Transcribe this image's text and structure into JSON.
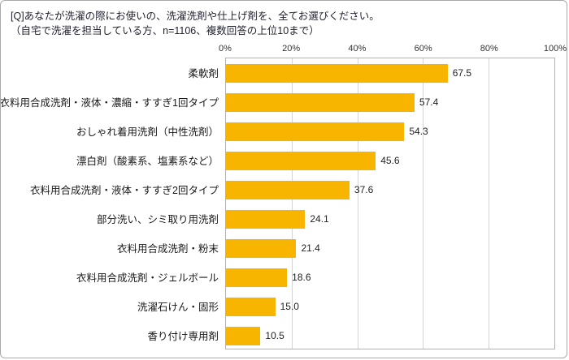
{
  "title": {
    "line1": "[Q]あなたが洗濯の際にお使いの、洗濯洗剤や仕上げ剤を、全てお選びください。",
    "line2": "（自宅で洗濯を担当している方、n=1106、複数回答の上位10まで）"
  },
  "chart_data": {
    "type": "bar",
    "orientation": "horizontal",
    "title": "[Q]あなたが洗濯の際にお使いの、洗濯洗剤や仕上げ剤を、全てお選びください。（自宅で洗濯を担当している方、n=1106、複数回答の上位10まで）",
    "categories": [
      "柔軟剤",
      "衣料用合成洗剤・液体・濃縮・すすぎ1回タイプ",
      "おしゃれ着用洗剤（中性洗剤）",
      "漂白剤（酸素系、塩素系など）",
      "衣料用合成洗剤・液体・すすぎ2回タイプ",
      "部分洗い、シミ取り用洗剤",
      "衣料用合成洗剤・粉末",
      "衣料用合成洗剤・ジェルボール",
      "洗濯石けん・固形",
      "香り付け専用剤"
    ],
    "values": [
      67.5,
      57.4,
      54.3,
      45.6,
      37.6,
      24.1,
      21.4,
      18.6,
      15.0,
      10.5
    ],
    "value_labels": [
      "67.5",
      "57.4",
      "54.3",
      "45.6",
      "37.6",
      "24.1",
      "21.4",
      "18.6",
      "15.0",
      "10.5"
    ],
    "xlim": [
      0,
      100
    ],
    "x_ticks": [
      {
        "pos": 0,
        "label": "0%"
      },
      {
        "pos": 20,
        "label": "20%"
      },
      {
        "pos": 40,
        "label": "40%"
      },
      {
        "pos": 60,
        "label": "60%"
      },
      {
        "pos": 80,
        "label": "80%"
      },
      {
        "pos": 100,
        "label": "100%"
      }
    ],
    "gridline_positions": [
      20,
      40,
      60,
      80
    ],
    "bar_color": "#F8B500",
    "grid": true,
    "legend": false
  }
}
